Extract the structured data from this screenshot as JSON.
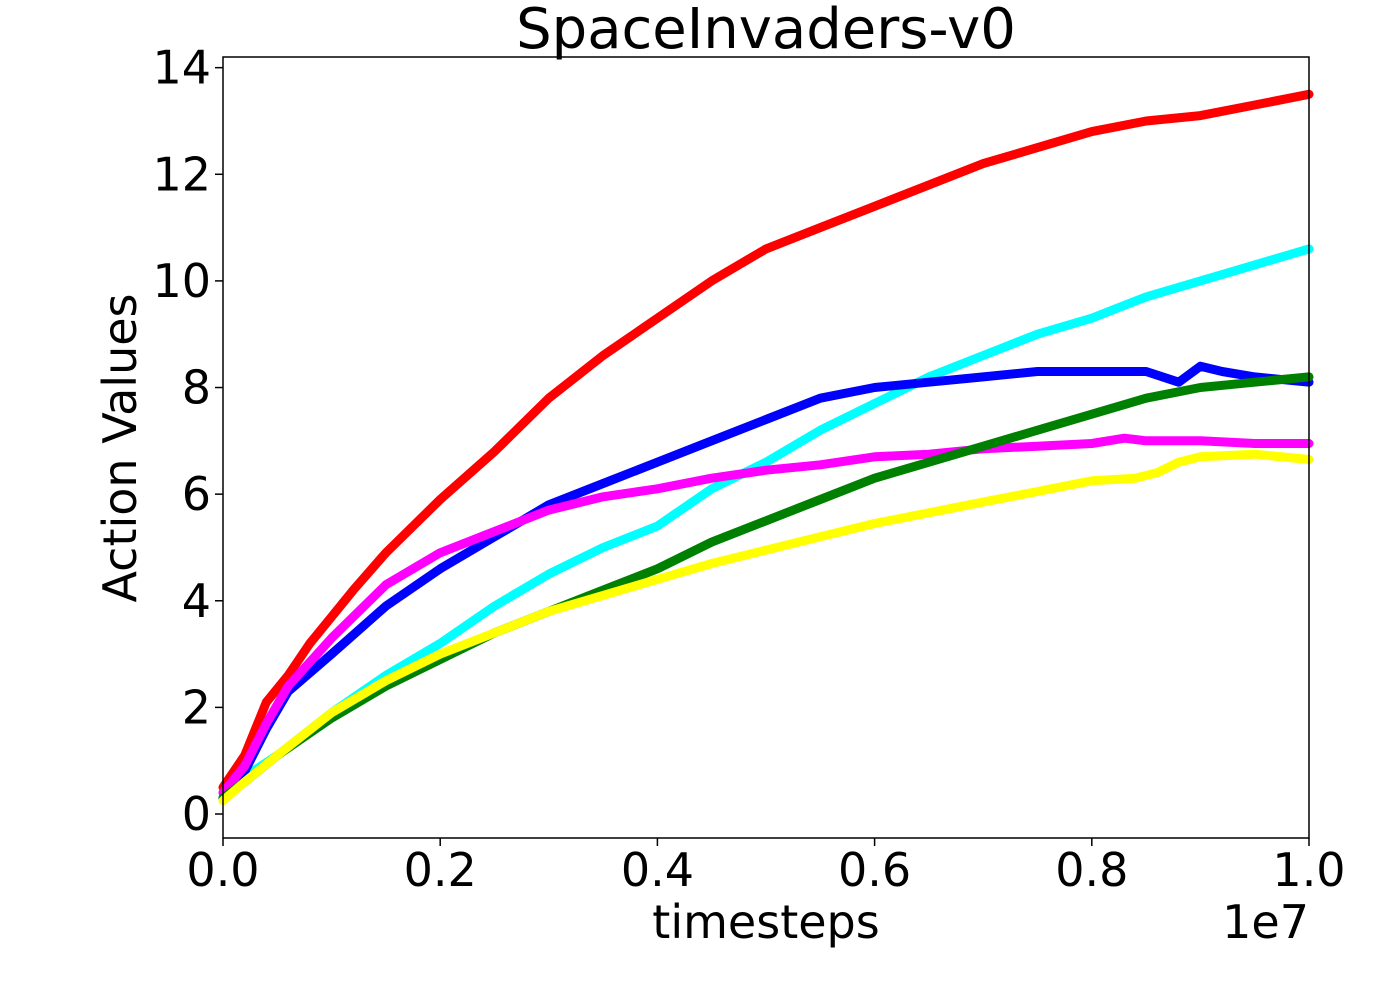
{
  "chart_data": {
    "type": "line",
    "title": "SpaceInvaders-v0",
    "xlabel": "timesteps",
    "ylabel": "Action Values",
    "x_scale_label": "1e7",
    "xlim": [
      0.0,
      1.0
    ],
    "ylim": [
      -0.45,
      14.2
    ],
    "x_ticks": [
      0.0,
      0.2,
      0.4,
      0.6,
      0.8,
      1.0
    ],
    "x_tick_labels": [
      "0.0",
      "0.2",
      "0.4",
      "0.6",
      "0.8",
      "1.0"
    ],
    "y_ticks": [
      0,
      2,
      4,
      6,
      8,
      10,
      12,
      14
    ],
    "y_tick_labels": [
      "0",
      "2",
      "4",
      "6",
      "8",
      "10",
      "12",
      "14"
    ],
    "grid": false,
    "series": [
      {
        "color": "#ff0000",
        "x": [
          0.0,
          0.02,
          0.04,
          0.06,
          0.08,
          0.1,
          0.12,
          0.15,
          0.2,
          0.25,
          0.3,
          0.35,
          0.4,
          0.45,
          0.5,
          0.55,
          0.6,
          0.65,
          0.7,
          0.75,
          0.8,
          0.85,
          0.9,
          0.95,
          1.0
        ],
        "y": [
          0.5,
          1.1,
          2.1,
          2.6,
          3.2,
          3.7,
          4.2,
          4.9,
          5.9,
          6.8,
          7.8,
          8.6,
          9.3,
          10.0,
          10.6,
          11.0,
          11.4,
          11.8,
          12.2,
          12.5,
          12.8,
          13.0,
          13.1,
          13.3,
          13.5
        ]
      },
      {
        "color": "#00ffff",
        "x": [
          0.0,
          0.02,
          0.05,
          0.1,
          0.15,
          0.2,
          0.25,
          0.3,
          0.35,
          0.4,
          0.45,
          0.5,
          0.55,
          0.6,
          0.65,
          0.7,
          0.75,
          0.8,
          0.85,
          0.9,
          0.95,
          1.0
        ],
        "y": [
          0.4,
          0.7,
          1.1,
          1.9,
          2.6,
          3.2,
          3.9,
          4.5,
          5.0,
          5.4,
          6.1,
          6.6,
          7.2,
          7.7,
          8.2,
          8.6,
          9.0,
          9.3,
          9.7,
          10.0,
          10.3,
          10.6
        ]
      },
      {
        "color": "#0000ff",
        "x": [
          0.0,
          0.02,
          0.04,
          0.06,
          0.1,
          0.15,
          0.2,
          0.25,
          0.3,
          0.35,
          0.4,
          0.45,
          0.5,
          0.55,
          0.6,
          0.65,
          0.7,
          0.75,
          0.8,
          0.85,
          0.88,
          0.9,
          0.92,
          0.95,
          1.0
        ],
        "y": [
          0.3,
          0.8,
          1.6,
          2.3,
          3.0,
          3.9,
          4.6,
          5.2,
          5.8,
          6.2,
          6.6,
          7.0,
          7.4,
          7.8,
          8.0,
          8.1,
          8.2,
          8.3,
          8.3,
          8.3,
          8.1,
          8.4,
          8.3,
          8.2,
          8.1
        ]
      },
      {
        "color": "#ff00ff",
        "x": [
          0.0,
          0.02,
          0.04,
          0.06,
          0.1,
          0.15,
          0.2,
          0.25,
          0.3,
          0.35,
          0.4,
          0.45,
          0.5,
          0.55,
          0.6,
          0.65,
          0.7,
          0.75,
          0.8,
          0.83,
          0.85,
          0.9,
          0.95,
          1.0
        ],
        "y": [
          0.4,
          0.9,
          1.7,
          2.4,
          3.3,
          4.3,
          4.9,
          5.3,
          5.7,
          5.95,
          6.1,
          6.3,
          6.45,
          6.55,
          6.7,
          6.75,
          6.85,
          6.9,
          6.95,
          7.05,
          7.0,
          7.0,
          6.95,
          6.95
        ]
      },
      {
        "color": "#008000",
        "x": [
          0.0,
          0.02,
          0.05,
          0.1,
          0.15,
          0.2,
          0.25,
          0.3,
          0.35,
          0.4,
          0.45,
          0.5,
          0.55,
          0.6,
          0.65,
          0.7,
          0.75,
          0.8,
          0.85,
          0.9,
          0.95,
          1.0
        ],
        "y": [
          0.3,
          0.6,
          1.1,
          1.8,
          2.4,
          2.9,
          3.4,
          3.8,
          4.2,
          4.6,
          5.1,
          5.5,
          5.9,
          6.3,
          6.6,
          6.9,
          7.2,
          7.5,
          7.8,
          8.0,
          8.1,
          8.2
        ]
      },
      {
        "color": "#ffff00",
        "x": [
          0.0,
          0.02,
          0.05,
          0.1,
          0.15,
          0.2,
          0.25,
          0.3,
          0.35,
          0.4,
          0.45,
          0.5,
          0.55,
          0.6,
          0.65,
          0.7,
          0.75,
          0.8,
          0.84,
          0.86,
          0.88,
          0.9,
          0.95,
          1.0
        ],
        "y": [
          0.25,
          0.6,
          1.1,
          1.9,
          2.5,
          3.0,
          3.4,
          3.8,
          4.1,
          4.4,
          4.7,
          4.95,
          5.2,
          5.45,
          5.65,
          5.85,
          6.05,
          6.25,
          6.3,
          6.4,
          6.6,
          6.7,
          6.75,
          6.65
        ]
      }
    ]
  }
}
